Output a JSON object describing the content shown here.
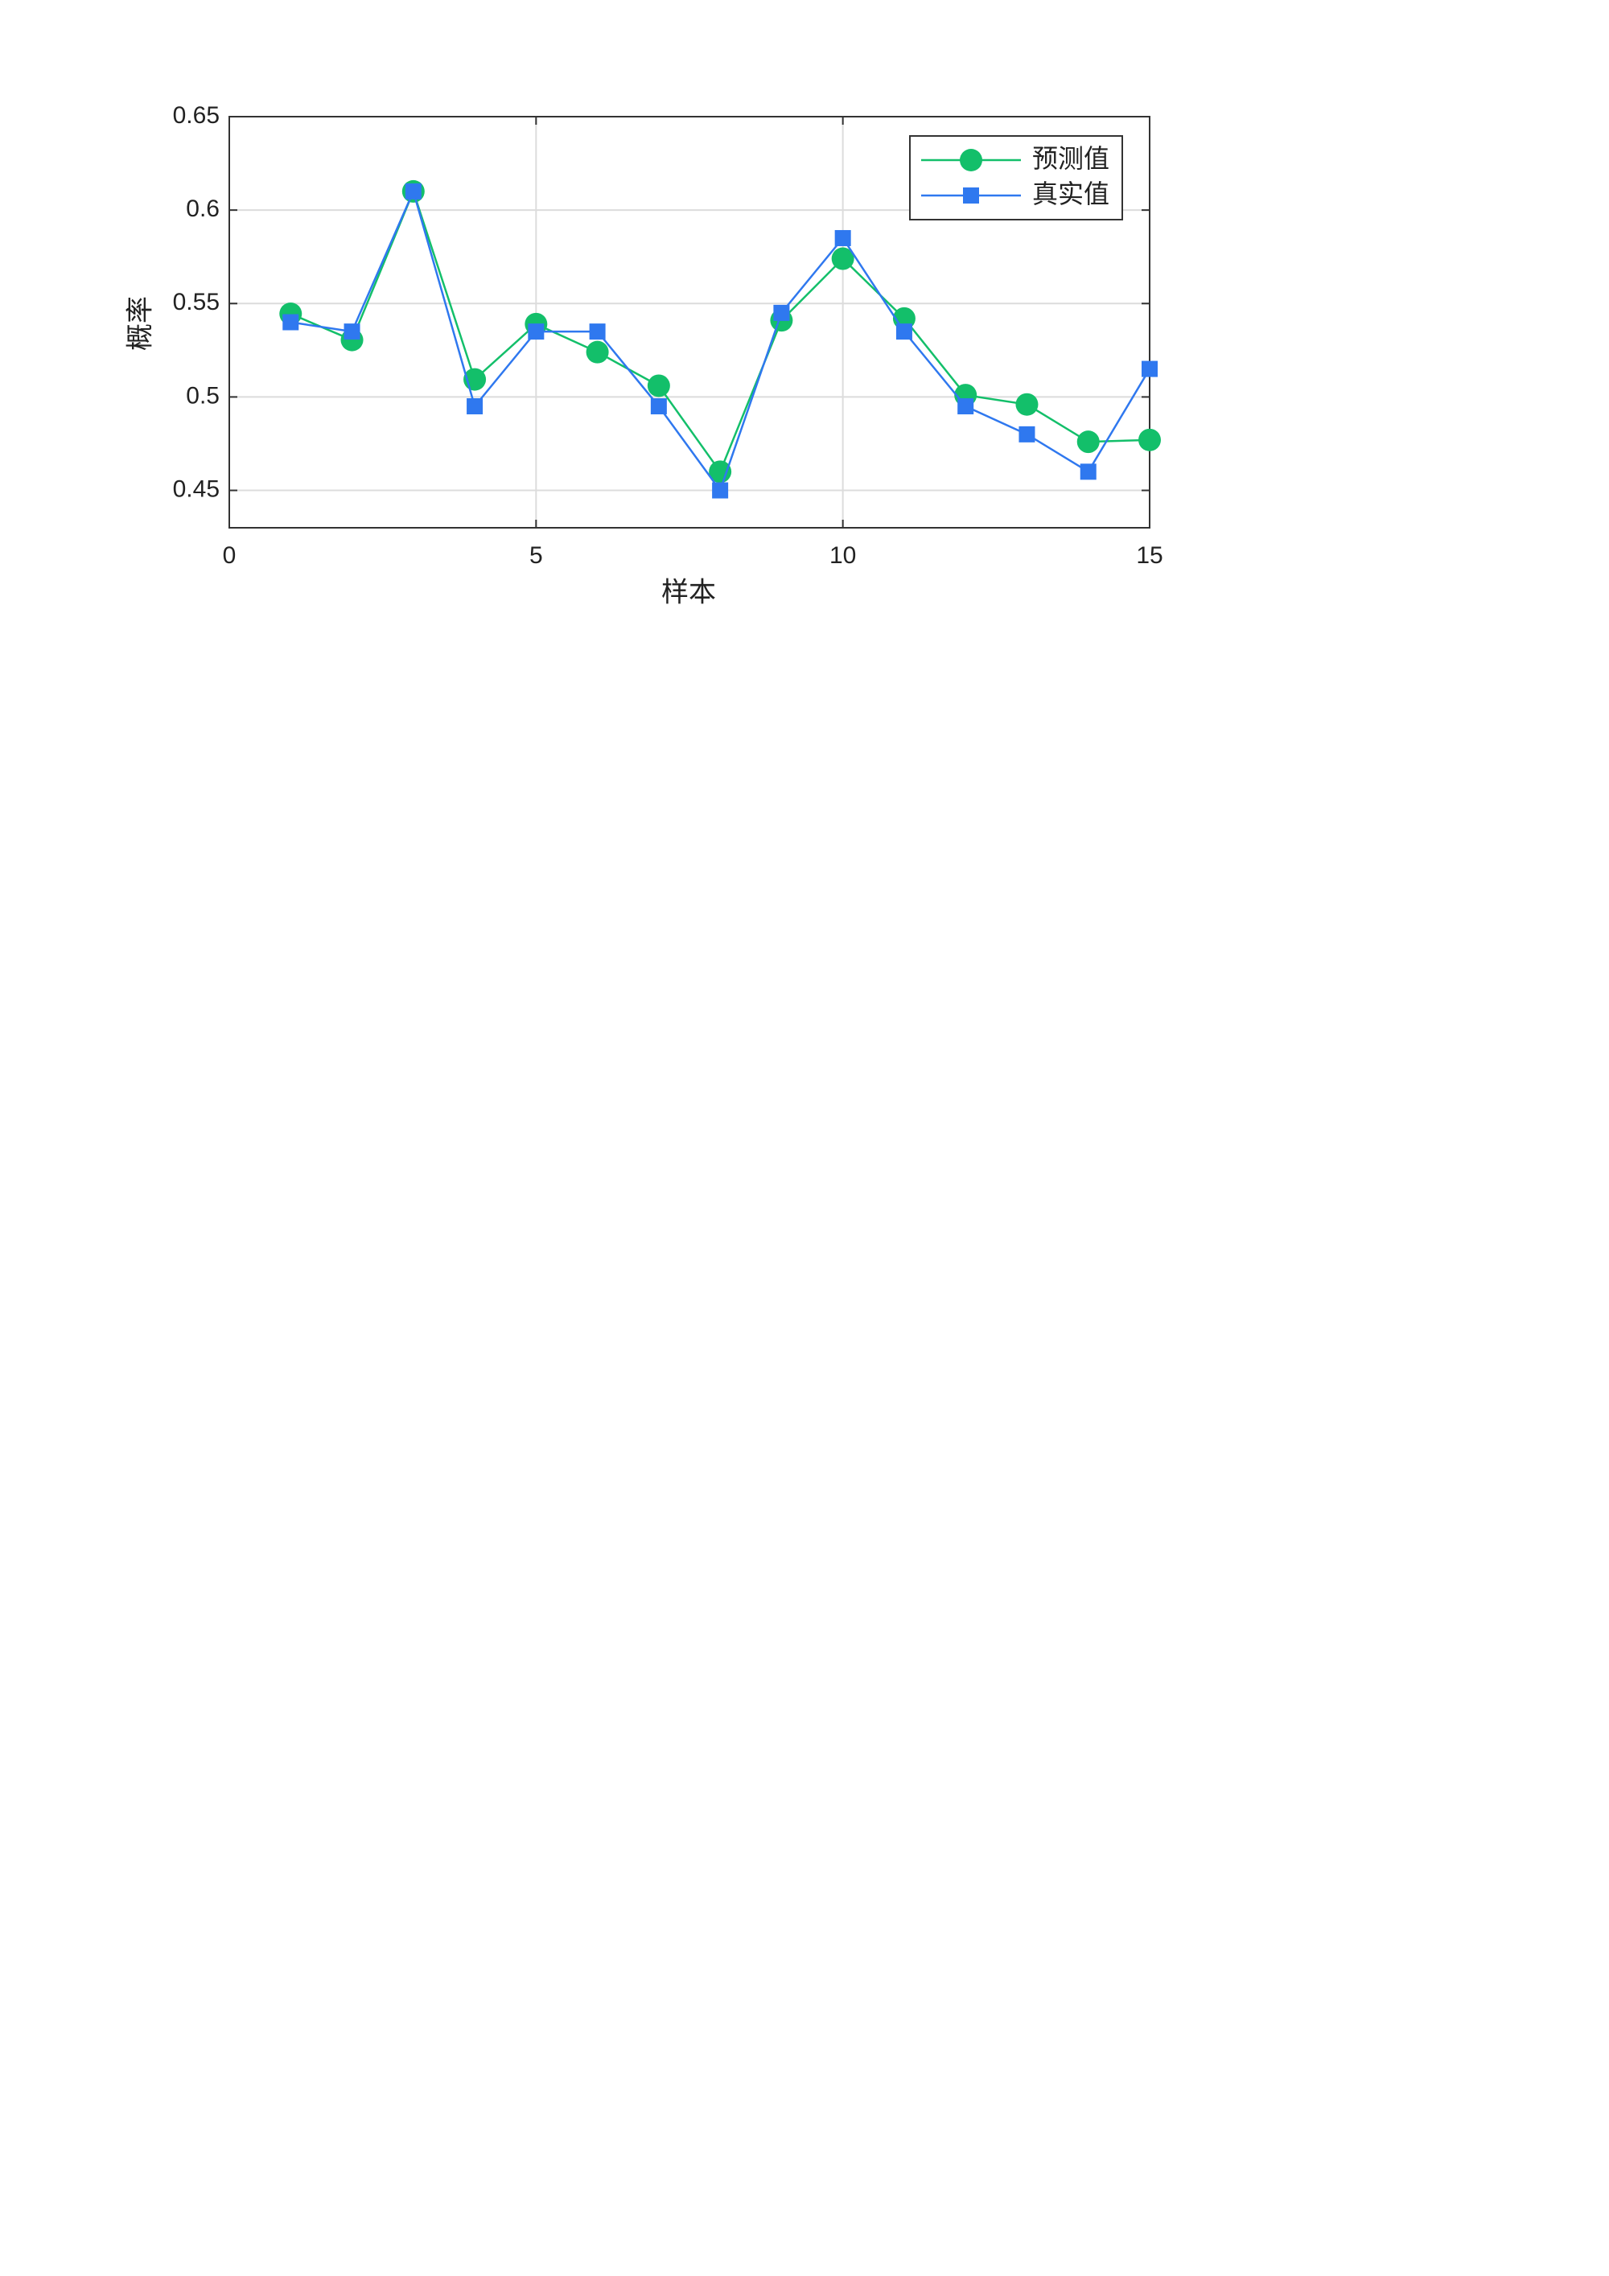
{
  "chart_data": {
    "type": "line",
    "xlabel": "样本",
    "ylabel": "概率",
    "x": [
      1,
      2,
      3,
      4,
      5,
      6,
      7,
      8,
      9,
      10,
      11,
      12,
      13,
      14,
      15
    ],
    "series": [
      {
        "name": "预测值",
        "color": "#13bf6a",
        "marker": "circle",
        "values": [
          0.5445,
          0.5305,
          0.61,
          0.5094,
          0.539,
          0.524,
          0.506,
          0.46,
          0.541,
          0.574,
          0.542,
          0.501,
          0.496,
          0.476,
          0.477
        ]
      },
      {
        "name": "真实值",
        "color": "#2f78ef",
        "marker": "square",
        "values": [
          0.54,
          0.535,
          0.61,
          0.495,
          0.535,
          0.535,
          0.495,
          0.45,
          0.545,
          0.585,
          0.535,
          0.495,
          0.48,
          0.46,
          0.515
        ]
      }
    ],
    "xlim": [
      0,
      15
    ],
    "xticks": [
      0,
      5,
      10,
      15
    ],
    "ylim": [
      0.43,
      0.65
    ],
    "yticks": [
      0.45,
      0.5,
      0.55,
      0.6,
      0.65
    ],
    "grid": true,
    "legend": "upper right"
  }
}
